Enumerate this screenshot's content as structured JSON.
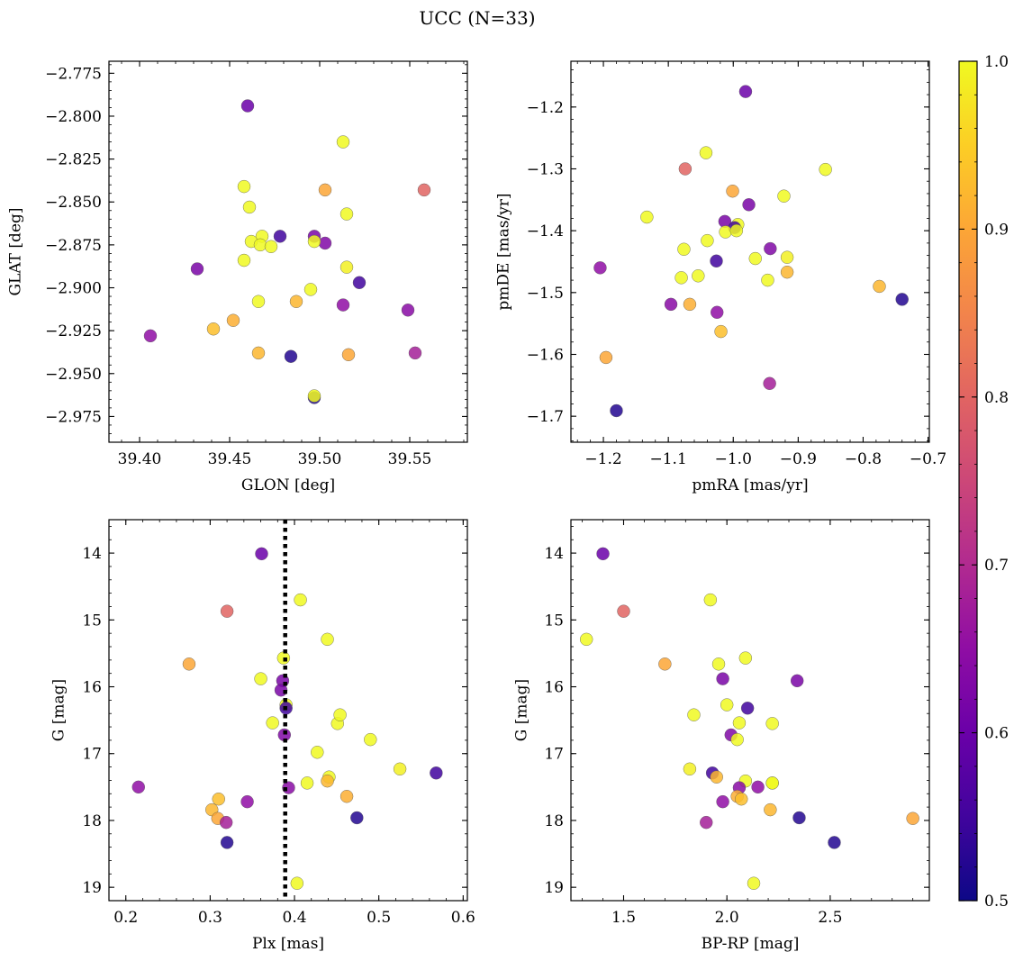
{
  "title": "UCC (N=33)",
  "colorbar": {
    "min": 0.5,
    "max": 1.0,
    "ticks": [
      "0.5",
      "0.6",
      "0.7",
      "0.8",
      "0.9",
      "1.0"
    ],
    "colormap": "plasma"
  },
  "chart_data": [
    {
      "type": "scatter",
      "xlabel": "GLON [deg]",
      "ylabel": "GLAT [deg]",
      "xlim": [
        39.383,
        39.582
      ],
      "ylim": [
        -2.99,
        -2.768
      ],
      "xticks": [
        "39.40",
        "39.45",
        "39.50",
        "39.55"
      ],
      "yticks": [
        "-2.775",
        "-2.800",
        "-2.825",
        "-2.850",
        "-2.875",
        "-2.900",
        "-2.925",
        "-2.950",
        "-2.975"
      ],
      "x": [
        39.46,
        39.513,
        39.558,
        39.458,
        39.503,
        39.461,
        39.515,
        39.432,
        39.497,
        39.468,
        39.478,
        39.462,
        39.467,
        39.473,
        39.503,
        39.497,
        39.458,
        39.515,
        39.522,
        39.466,
        39.495,
        39.487,
        39.513,
        39.549,
        39.452,
        39.406,
        39.441,
        39.466,
        39.484,
        39.516,
        39.553,
        39.497,
        39.497
      ],
      "y": [
        -2.794,
        -2.815,
        -2.843,
        -2.841,
        -2.843,
        -2.853,
        -2.857,
        -2.889,
        -2.87,
        -2.87,
        -2.87,
        -2.873,
        -2.875,
        -2.876,
        -2.874,
        -2.873,
        -2.884,
        -2.888,
        -2.897,
        -2.908,
        -2.901,
        -2.908,
        -2.91,
        -2.913,
        -2.919,
        -2.928,
        -2.924,
        -2.938,
        -2.94,
        -2.939,
        -2.938,
        -2.964,
        -2.963
      ]
    },
    {
      "type": "scatter",
      "xlabel": "pmRA [mas/yr]",
      "ylabel": "pmDE [mas/yr]",
      "xlim": [
        -1.25,
        -0.698
      ],
      "ylim": [
        -1.742,
        -1.126
      ],
      "xticks": [
        "-1.2",
        "-1.1",
        "-1.0",
        "-0.9",
        "-0.8",
        "-0.7"
      ],
      "yticks": [
        "-1.2",
        "-1.3",
        "-1.4",
        "-1.5",
        "-1.6",
        "-1.7"
      ],
      "x": [
        -0.981,
        -1.042,
        -1.074,
        -0.858,
        -1.001,
        -1.133,
        -0.922,
        -0.976,
        -1.013,
        -0.993,
        -0.998,
        -1.012,
        -0.995,
        -1.04,
        -0.943,
        -1.076,
        -0.966,
        -0.917,
        -1.026,
        -1.054,
        -0.947,
        -0.917,
        -1.205,
        -1.096,
        -1.067,
        -1.025,
        -1.019,
        -0.775,
        -0.74,
        -1.196,
        -0.944,
        -1.18,
        -1.08
      ],
      "y": [
        -1.175,
        -1.274,
        -1.3,
        -1.301,
        -1.336,
        -1.378,
        -1.344,
        -1.358,
        -1.385,
        -1.39,
        -1.395,
        -1.402,
        -1.4,
        -1.416,
        -1.429,
        -1.43,
        -1.445,
        -1.443,
        -1.449,
        -1.473,
        -1.48,
        -1.467,
        -1.46,
        -1.519,
        -1.519,
        -1.532,
        -1.563,
        -1.49,
        -1.511,
        -1.605,
        -1.647,
        -1.691,
        -1.476
      ]
    },
    {
      "type": "scatter",
      "xlabel": "Plx [mas]",
      "ylabel": "G [mag]",
      "xlim": [
        0.18,
        0.605
      ],
      "ylim": [
        19.2,
        13.5
      ],
      "xticks": [
        "0.2",
        "0.3",
        "0.4",
        "0.5",
        "0.6"
      ],
      "yticks": [
        "14",
        "15",
        "16",
        "17",
        "18",
        "19"
      ],
      "vline": 0.389,
      "x": [
        0.361,
        0.407,
        0.32,
        0.439,
        0.275,
        0.387,
        0.36,
        0.386,
        0.384,
        0.39,
        0.39,
        0.374,
        0.451,
        0.454,
        0.388,
        0.49,
        0.427,
        0.525,
        0.568,
        0.415,
        0.441,
        0.439,
        0.215,
        0.393,
        0.462,
        0.344,
        0.31,
        0.302,
        0.474,
        0.309,
        0.319,
        0.32,
        0.403
      ],
      "y": [
        14.01,
        14.7,
        14.87,
        15.29,
        15.66,
        15.57,
        15.88,
        15.91,
        16.05,
        16.27,
        16.32,
        16.54,
        16.55,
        16.42,
        16.72,
        16.79,
        16.98,
        17.23,
        17.29,
        17.44,
        17.35,
        17.41,
        17.5,
        17.51,
        17.64,
        17.72,
        17.68,
        17.84,
        17.96,
        17.97,
        18.03,
        18.33,
        18.94
      ]
    },
    {
      "type": "scatter",
      "xlabel": "BP-RP [mag]",
      "ylabel": "G [mag]",
      "xlim": [
        1.245,
        2.98
      ],
      "ylim": [
        19.2,
        13.5
      ],
      "xticks": [
        "1.5",
        "2.0",
        "2.5"
      ],
      "yticks": [
        "14",
        "15",
        "16",
        "17",
        "18",
        "19"
      ],
      "x": [
        1.4,
        1.92,
        1.5,
        1.32,
        1.7,
        2.09,
        1.96,
        1.98,
        2.34,
        2.0,
        2.1,
        1.84,
        2.22,
        2.06,
        2.02,
        2.05,
        2.22,
        1.82,
        1.93,
        2.22,
        2.09,
        1.95,
        2.15,
        2.06,
        2.05,
        1.98,
        2.07,
        2.21,
        2.35,
        2.9,
        1.9,
        2.52,
        2.13
      ],
      "y": [
        14.01,
        14.7,
        14.87,
        15.29,
        15.66,
        15.57,
        15.66,
        15.88,
        15.91,
        16.27,
        16.32,
        16.42,
        16.55,
        16.54,
        16.72,
        16.79,
        17.44,
        17.23,
        17.29,
        17.44,
        17.41,
        17.35,
        17.5,
        17.51,
        17.64,
        17.72,
        17.68,
        17.84,
        17.96,
        17.97,
        18.03,
        18.33,
        18.94
      ]
    }
  ],
  "probabilities": [
    0.6,
    1.0,
    0.8,
    1.0,
    0.9,
    1.0,
    1.0,
    0.62,
    0.62,
    1.0,
    0.55,
    1.0,
    1.0,
    1.0,
    0.63,
    1.0,
    1.0,
    0.99,
    0.55,
    1.0,
    1.0,
    0.92,
    0.65,
    0.64,
    0.91,
    0.65,
    0.93,
    0.92,
    0.52,
    0.9,
    0.68,
    0.52,
    1.0
  ]
}
